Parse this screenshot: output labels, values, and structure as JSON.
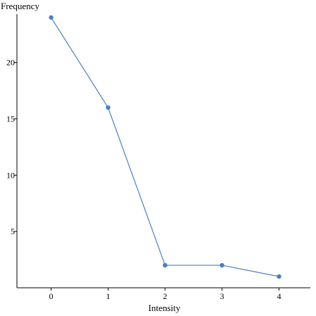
{
  "chart_data": {
    "type": "line",
    "xlabel": "Intensity",
    "ylabel": "Frequency",
    "x": [
      0,
      1,
      2,
      3,
      4
    ],
    "series": [
      {
        "values": [
          24,
          16,
          2,
          2,
          1
        ],
        "color": "#4c7fbf"
      }
    ],
    "xlim": [
      -0.6,
      4.55
    ],
    "ylim": [
      0,
      24.3
    ],
    "xticks": [
      "0",
      "1",
      "2",
      "3",
      "4"
    ],
    "yticks": [
      "5",
      "10",
      "15",
      "20"
    ],
    "grid": false
  }
}
